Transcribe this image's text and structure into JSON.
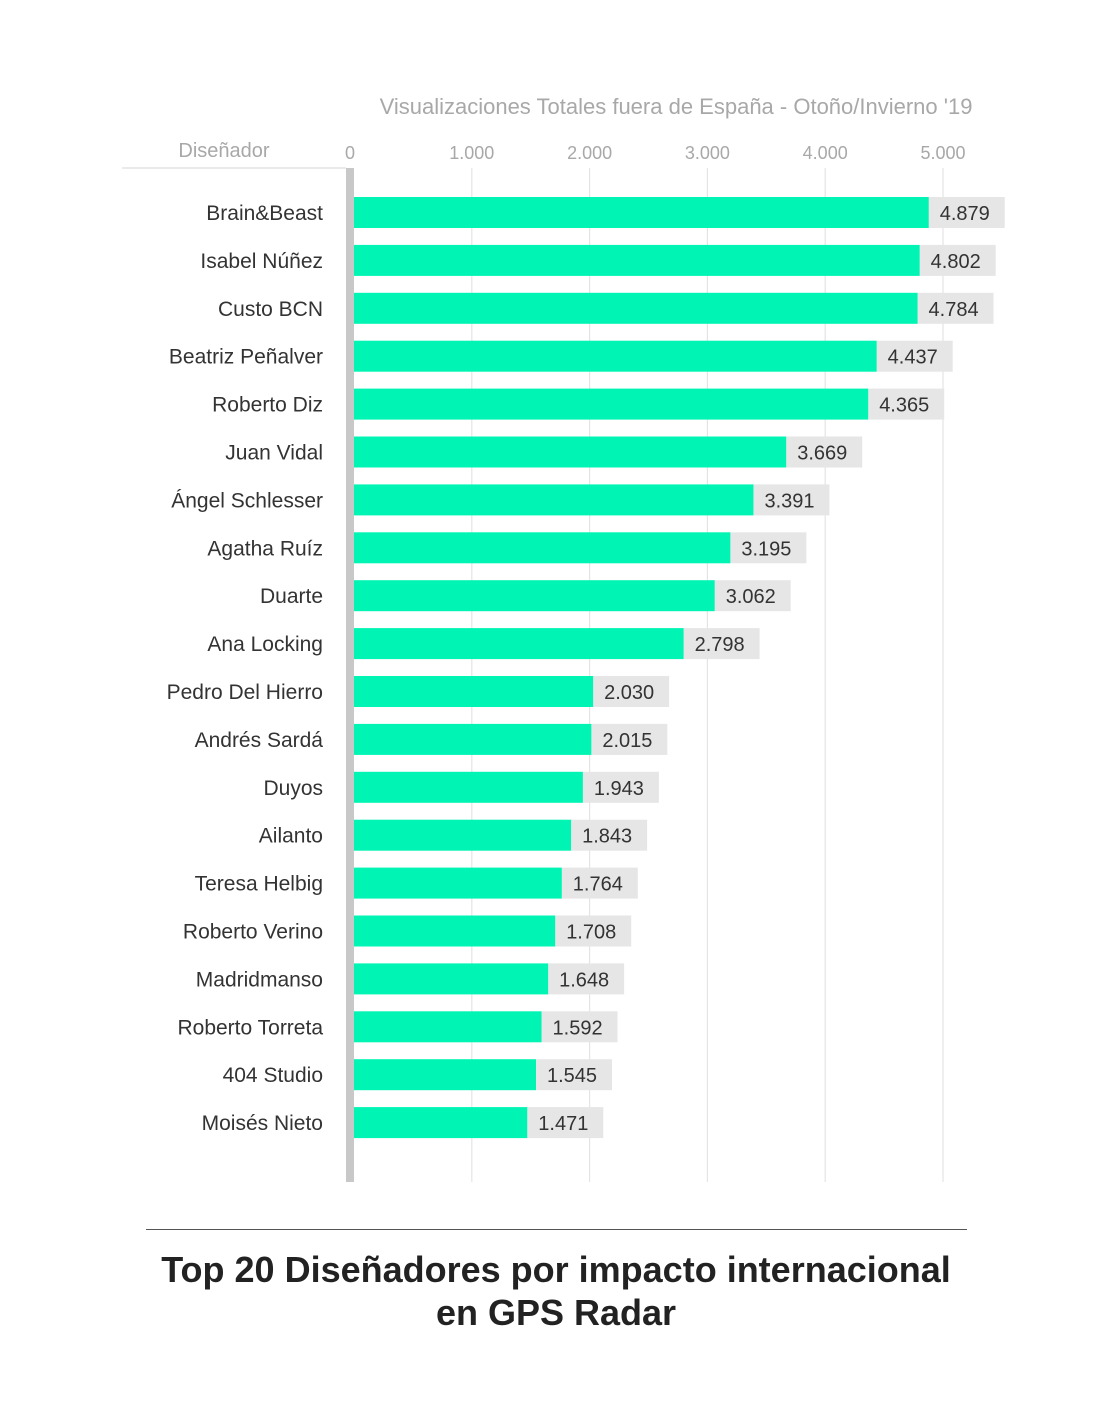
{
  "chart_data": {
    "type": "bar",
    "orientation": "horizontal",
    "title": "Top 20 Diseñadores por impacto internacional en GPS Radar",
    "title_lines": [
      "Top 20 Diseñadores por impacto internacional",
      "en GPS Radar"
    ],
    "xlabel": "Visualizaciones Totales fuera de España - Otoño/Invierno '19",
    "ylabel": "Diseñador",
    "xlim": [
      0,
      5000
    ],
    "ticks": [
      0,
      1000,
      2000,
      3000,
      4000,
      5000
    ],
    "tick_labels": [
      "0",
      "1.000",
      "2.000",
      "3.000",
      "4.000",
      "5.000"
    ],
    "grid": true,
    "categories": [
      "Brain&Beast",
      "Isabel Núñez",
      "Custo BCN",
      "Beatriz Peñalver",
      "Roberto Diz",
      "Juan Vidal",
      "Ángel Schlesser",
      "Agatha Ruíz",
      "Duarte",
      "Ana Locking",
      "Pedro Del Hierro",
      "Andrés Sardá",
      "Duyos",
      "Ailanto",
      "Teresa Helbig",
      "Roberto Verino",
      "Madridmanso",
      "Roberto Torreta",
      "404 Studio",
      "Moisés Nieto"
    ],
    "values": [
      4879,
      4802,
      4784,
      4437,
      4365,
      3669,
      3391,
      3195,
      3062,
      2798,
      2030,
      2015,
      1943,
      1843,
      1764,
      1708,
      1648,
      1592,
      1545,
      1471
    ],
    "value_labels": [
      "4.879",
      "4.802",
      "4.784",
      "4.437",
      "4.365",
      "3.669",
      "3.391",
      "3.195",
      "3.062",
      "2.798",
      "2.030",
      "2.015",
      "1.943",
      "1.843",
      "1.764",
      "1.708",
      "1.648",
      "1.592",
      "1.545",
      "1.471"
    ],
    "colors": {
      "bar": "#00f5b4",
      "label_bg": "#e6e6e6",
      "grid": "#e4e4e4",
      "axis": "#c8c8c8"
    }
  }
}
